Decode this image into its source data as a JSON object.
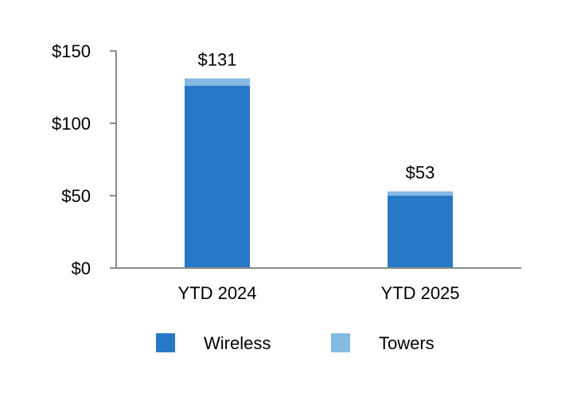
{
  "chart_data": {
    "type": "bar",
    "stacked": true,
    "categories": [
      "YTD 2024",
      "YTD 2025"
    ],
    "series": [
      {
        "name": "Wireless",
        "values": [
          126,
          50
        ],
        "color": "#2878C8"
      },
      {
        "name": "Towers",
        "values": [
          5,
          3
        ],
        "color": "#85BAE3"
      }
    ],
    "totals": [
      "$131",
      "$53"
    ],
    "y_ticks": [
      "$0",
      "$50",
      "$100",
      "$150"
    ],
    "y_tick_values": [
      0,
      50,
      100,
      150
    ],
    "ylim": [
      0,
      150
    ],
    "legend_position": "bottom",
    "grid": false
  }
}
